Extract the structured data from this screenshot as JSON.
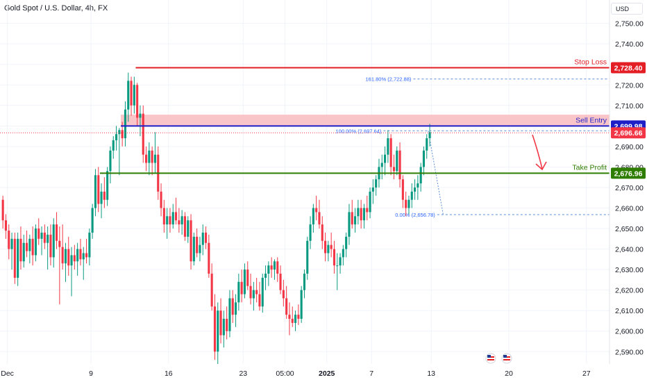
{
  "symbol": "Gold Spot / U.S. Dollar, 4h, FX",
  "currency": "USD",
  "colors": {
    "up": "#089981",
    "down": "#f23645",
    "stop": "#e31e24",
    "entry": "#1f1fc8",
    "profit": "#2e7d00",
    "zone": "#f9c5c8",
    "fib": "#5b8fd6",
    "grid": "#f0f3fa"
  },
  "chart_data": {
    "type": "candlestick",
    "title": "",
    "ylim": [
      2584,
      2758
    ],
    "y_ticks": [
      2590,
      2600,
      2610,
      2620,
      2630,
      2640,
      2650,
      2660,
      2670,
      2680,
      2690,
      2700,
      2710,
      2720,
      2730,
      2740,
      2750
    ],
    "x_ticks": [
      {
        "label": "Dec",
        "bar": 2
      },
      {
        "label": "9",
        "bar": 30
      },
      {
        "label": "16",
        "bar": 56
      },
      {
        "label": "23",
        "bar": 81
      },
      {
        "label": "05:00",
        "bar": 95
      },
      {
        "label": "2025",
        "bar": 109,
        "bold": true
      },
      {
        "label": "7",
        "bar": 124
      },
      {
        "label": "13",
        "bar": 144
      },
      {
        "label": "20",
        "bar": 170
      },
      {
        "label": "27",
        "bar": 196
      }
    ],
    "total_bars": 216,
    "candles": [
      [
        2664,
        2666,
        2650,
        2654
      ],
      [
        2654,
        2657,
        2645,
        2649
      ],
      [
        2649,
        2652,
        2635,
        2640
      ],
      [
        2640,
        2648,
        2630,
        2645
      ],
      [
        2645,
        2648,
        2623,
        2626
      ],
      [
        2626,
        2648,
        2622,
        2645
      ],
      [
        2645,
        2651,
        2630,
        2634
      ],
      [
        2634,
        2647,
        2631,
        2643
      ],
      [
        2643,
        2649,
        2636,
        2639
      ],
      [
        2639,
        2647,
        2633,
        2645
      ],
      [
        2645,
        2651,
        2632,
        2637
      ],
      [
        2637,
        2652,
        2634,
        2650
      ],
      [
        2650,
        2655,
        2642,
        2645
      ],
      [
        2645,
        2651,
        2637,
        2648
      ],
      [
        2648,
        2652,
        2640,
        2643
      ],
      [
        2643,
        2651,
        2630,
        2647
      ],
      [
        2647,
        2652,
        2632,
        2636
      ],
      [
        2636,
        2655,
        2631,
        2652
      ],
      [
        2652,
        2658,
        2640,
        2644
      ],
      [
        2644,
        2651,
        2613,
        2641
      ],
      [
        2641,
        2652,
        2630,
        2633
      ],
      [
        2633,
        2643,
        2624,
        2640
      ],
      [
        2640,
        2646,
        2627,
        2632
      ],
      [
        2632,
        2641,
        2617,
        2637
      ],
      [
        2637,
        2642,
        2630,
        2634
      ],
      [
        2634,
        2643,
        2627,
        2640
      ],
      [
        2640,
        2645,
        2632,
        2635
      ],
      [
        2635,
        2641,
        2625,
        2638
      ],
      [
        2638,
        2645,
        2633,
        2636
      ],
      [
        2636,
        2650,
        2632,
        2648
      ],
      [
        2648,
        2662,
        2645,
        2660
      ],
      [
        2660,
        2679,
        2656,
        2676
      ],
      [
        2676,
        2680,
        2658,
        2662
      ],
      [
        2662,
        2672,
        2655,
        2668
      ],
      [
        2668,
        2675,
        2660,
        2664
      ],
      [
        2664,
        2680,
        2661,
        2678
      ],
      [
        2678,
        2690,
        2672,
        2688
      ],
      [
        2688,
        2695,
        2684,
        2693
      ],
      [
        2693,
        2700,
        2688,
        2696
      ],
      [
        2696,
        2699,
        2676,
        2698
      ],
      [
        2698,
        2702,
        2690,
        2694
      ],
      [
        2694,
        2712,
        2690,
        2708
      ],
      [
        2708,
        2726,
        2702,
        2722
      ],
      [
        2722,
        2724,
        2705,
        2710
      ],
      [
        2710,
        2724,
        2706,
        2720
      ],
      [
        2720,
        2721,
        2700,
        2704
      ],
      [
        2704,
        2710,
        2695,
        2706
      ],
      [
        2706,
        2710,
        2682,
        2686
      ],
      [
        2686,
        2690,
        2678,
        2682
      ],
      [
        2682,
        2692,
        2676,
        2688
      ],
      [
        2688,
        2690,
        2676,
        2682
      ],
      [
        2682,
        2697,
        2677,
        2686
      ],
      [
        2686,
        2690,
        2664,
        2668
      ],
      [
        2668,
        2672,
        2656,
        2660
      ],
      [
        2660,
        2664,
        2648,
        2652
      ],
      [
        2652,
        2660,
        2645,
        2656
      ],
      [
        2656,
        2660,
        2648,
        2652
      ],
      [
        2652,
        2662,
        2650,
        2658
      ],
      [
        2658,
        2665,
        2652,
        2654
      ],
      [
        2654,
        2660,
        2648,
        2652
      ],
      [
        2652,
        2659,
        2647,
        2656
      ],
      [
        2656,
        2658,
        2644,
        2646
      ],
      [
        2646,
        2656,
        2643,
        2654
      ],
      [
        2654,
        2657,
        2630,
        2634
      ],
      [
        2634,
        2648,
        2632,
        2646
      ],
      [
        2646,
        2650,
        2636,
        2638
      ],
      [
        2638,
        2646,
        2634,
        2642
      ],
      [
        2642,
        2652,
        2637,
        2648
      ],
      [
        2648,
        2651,
        2640,
        2643
      ],
      [
        2643,
        2647,
        2626,
        2628
      ],
      [
        2628,
        2633,
        2610,
        2612
      ],
      [
        2612,
        2618,
        2586,
        2590
      ],
      [
        2590,
        2614,
        2584,
        2610
      ],
      [
        2610,
        2616,
        2594,
        2598
      ],
      [
        2598,
        2610,
        2592,
        2606
      ],
      [
        2606,
        2612,
        2596,
        2600
      ],
      [
        2600,
        2620,
        2597,
        2616
      ],
      [
        2616,
        2620,
        2604,
        2608
      ],
      [
        2608,
        2618,
        2602,
        2614
      ],
      [
        2614,
        2628,
        2610,
        2624
      ],
      [
        2624,
        2630,
        2614,
        2618
      ],
      [
        2618,
        2633,
        2616,
        2630
      ],
      [
        2630,
        2634,
        2620,
        2622
      ],
      [
        2622,
        2628,
        2613,
        2616
      ],
      [
        2616,
        2624,
        2610,
        2620
      ],
      [
        2620,
        2626,
        2614,
        2618
      ],
      [
        2618,
        2624,
        2610,
        2612
      ],
      [
        2612,
        2628,
        2609,
        2626
      ],
      [
        2626,
        2632,
        2620,
        2628
      ],
      [
        2628,
        2634,
        2622,
        2632
      ],
      [
        2632,
        2636,
        2626,
        2630
      ],
      [
        2630,
        2635,
        2625,
        2634
      ],
      [
        2634,
        2636,
        2624,
        2628
      ],
      [
        2628,
        2632,
        2618,
        2620
      ],
      [
        2620,
        2625,
        2612,
        2616
      ],
      [
        2616,
        2622,
        2606,
        2608
      ],
      [
        2608,
        2614,
        2598,
        2606
      ],
      [
        2606,
        2612,
        2602,
        2604
      ],
      [
        2604,
        2610,
        2600,
        2608
      ],
      [
        2608,
        2613,
        2603,
        2606
      ],
      [
        2606,
        2622,
        2604,
        2620
      ],
      [
        2620,
        2630,
        2616,
        2628
      ],
      [
        2628,
        2646,
        2625,
        2644
      ],
      [
        2644,
        2656,
        2640,
        2652
      ],
      [
        2652,
        2662,
        2648,
        2660
      ],
      [
        2660,
        2666,
        2654,
        2658
      ],
      [
        2658,
        2664,
        2650,
        2652
      ],
      [
        2652,
        2656,
        2640,
        2644
      ],
      [
        2644,
        2648,
        2634,
        2638
      ],
      [
        2638,
        2644,
        2634,
        2642
      ],
      [
        2642,
        2648,
        2636,
        2640
      ],
      [
        2640,
        2644,
        2628,
        2632
      ],
      [
        2632,
        2638,
        2620,
        2632
      ],
      [
        2632,
        2638,
        2628,
        2636
      ],
      [
        2636,
        2642,
        2632,
        2640
      ],
      [
        2640,
        2648,
        2636,
        2646
      ],
      [
        2646,
        2662,
        2642,
        2658
      ],
      [
        2658,
        2664,
        2650,
        2652
      ],
      [
        2652,
        2660,
        2648,
        2656
      ],
      [
        2656,
        2664,
        2652,
        2660
      ],
      [
        2660,
        2664,
        2650,
        2654
      ],
      [
        2654,
        2662,
        2650,
        2660
      ],
      [
        2660,
        2666,
        2654,
        2658
      ],
      [
        2658,
        2670,
        2655,
        2668
      ],
      [
        2668,
        2674,
        2662,
        2670
      ],
      [
        2670,
        2676,
        2666,
        2674
      ],
      [
        2674,
        2684,
        2670,
        2680
      ],
      [
        2680,
        2686,
        2674,
        2682
      ],
      [
        2682,
        2690,
        2676,
        2686
      ],
      [
        2686,
        2698,
        2682,
        2694
      ],
      [
        2694,
        2696,
        2676,
        2680
      ],
      [
        2680,
        2686,
        2674,
        2678
      ],
      [
        2678,
        2690,
        2676,
        2688
      ],
      [
        2688,
        2692,
        2670,
        2674
      ],
      [
        2674,
        2676,
        2660,
        2664
      ],
      [
        2664,
        2668,
        2656,
        2660
      ],
      [
        2660,
        2666,
        2657,
        2664
      ],
      [
        2664,
        2672,
        2660,
        2668
      ],
      [
        2668,
        2674,
        2664,
        2670
      ],
      [
        2670,
        2676,
        2664,
        2672
      ],
      [
        2672,
        2682,
        2668,
        2680
      ],
      [
        2680,
        2690,
        2676,
        2688
      ],
      [
        2688,
        2696,
        2684,
        2694
      ],
      [
        2694,
        2701,
        2690,
        2697
      ]
    ],
    "levels": [
      {
        "name": "Stop Loss",
        "price": 2728.4,
        "badge": "2,728.40"
      },
      {
        "name": "Sell Entry",
        "price": 2699.98,
        "badge": "2,699.98"
      },
      {
        "name": "Take Profit",
        "price": 2676.96,
        "badge": "2,676.96"
      }
    ],
    "current_price": {
      "price": 2696.66,
      "badge": "2,696.66"
    },
    "sell_zone": [
      2699.98,
      2705.5
    ],
    "fib_levels": [
      {
        "label": "161.80% (2,722.88)",
        "price": 2722.88
      },
      {
        "label": "100.00% (2,697.64)",
        "price": 2697.64
      },
      {
        "label": "0.00% (2,656.78)",
        "price": 2656.78
      }
    ],
    "event_markers": 2
  }
}
